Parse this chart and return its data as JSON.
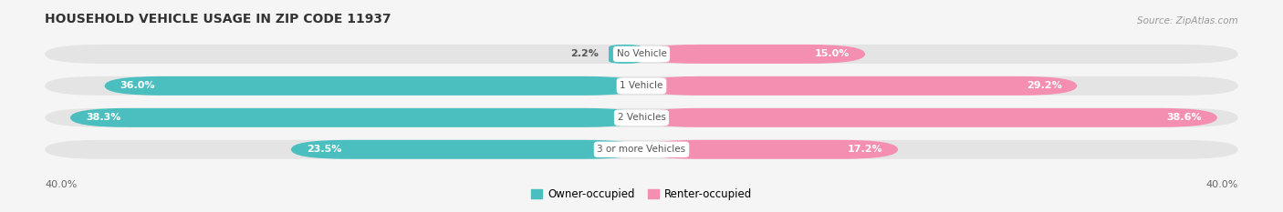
{
  "title": "HOUSEHOLD VEHICLE USAGE IN ZIP CODE 11937",
  "source": "Source: ZipAtlas.com",
  "categories": [
    "No Vehicle",
    "1 Vehicle",
    "2 Vehicles",
    "3 or more Vehicles"
  ],
  "owner_values": [
    2.2,
    36.0,
    38.3,
    23.5
  ],
  "renter_values": [
    15.0,
    29.2,
    38.6,
    17.2
  ],
  "owner_color": "#4BBFC0",
  "renter_color": "#F48FB1",
  "owner_label": "Owner-occupied",
  "renter_label": "Renter-occupied",
  "axis_max": 40.0,
  "axis_label_left": "40.0%",
  "axis_label_right": "40.0%",
  "background_color": "#f5f5f5",
  "bar_background": "#e4e4e4",
  "title_fontsize": 10,
  "source_fontsize": 7.5,
  "value_fontsize": 8,
  "category_fontsize": 7.5,
  "legend_fontsize": 8.5
}
